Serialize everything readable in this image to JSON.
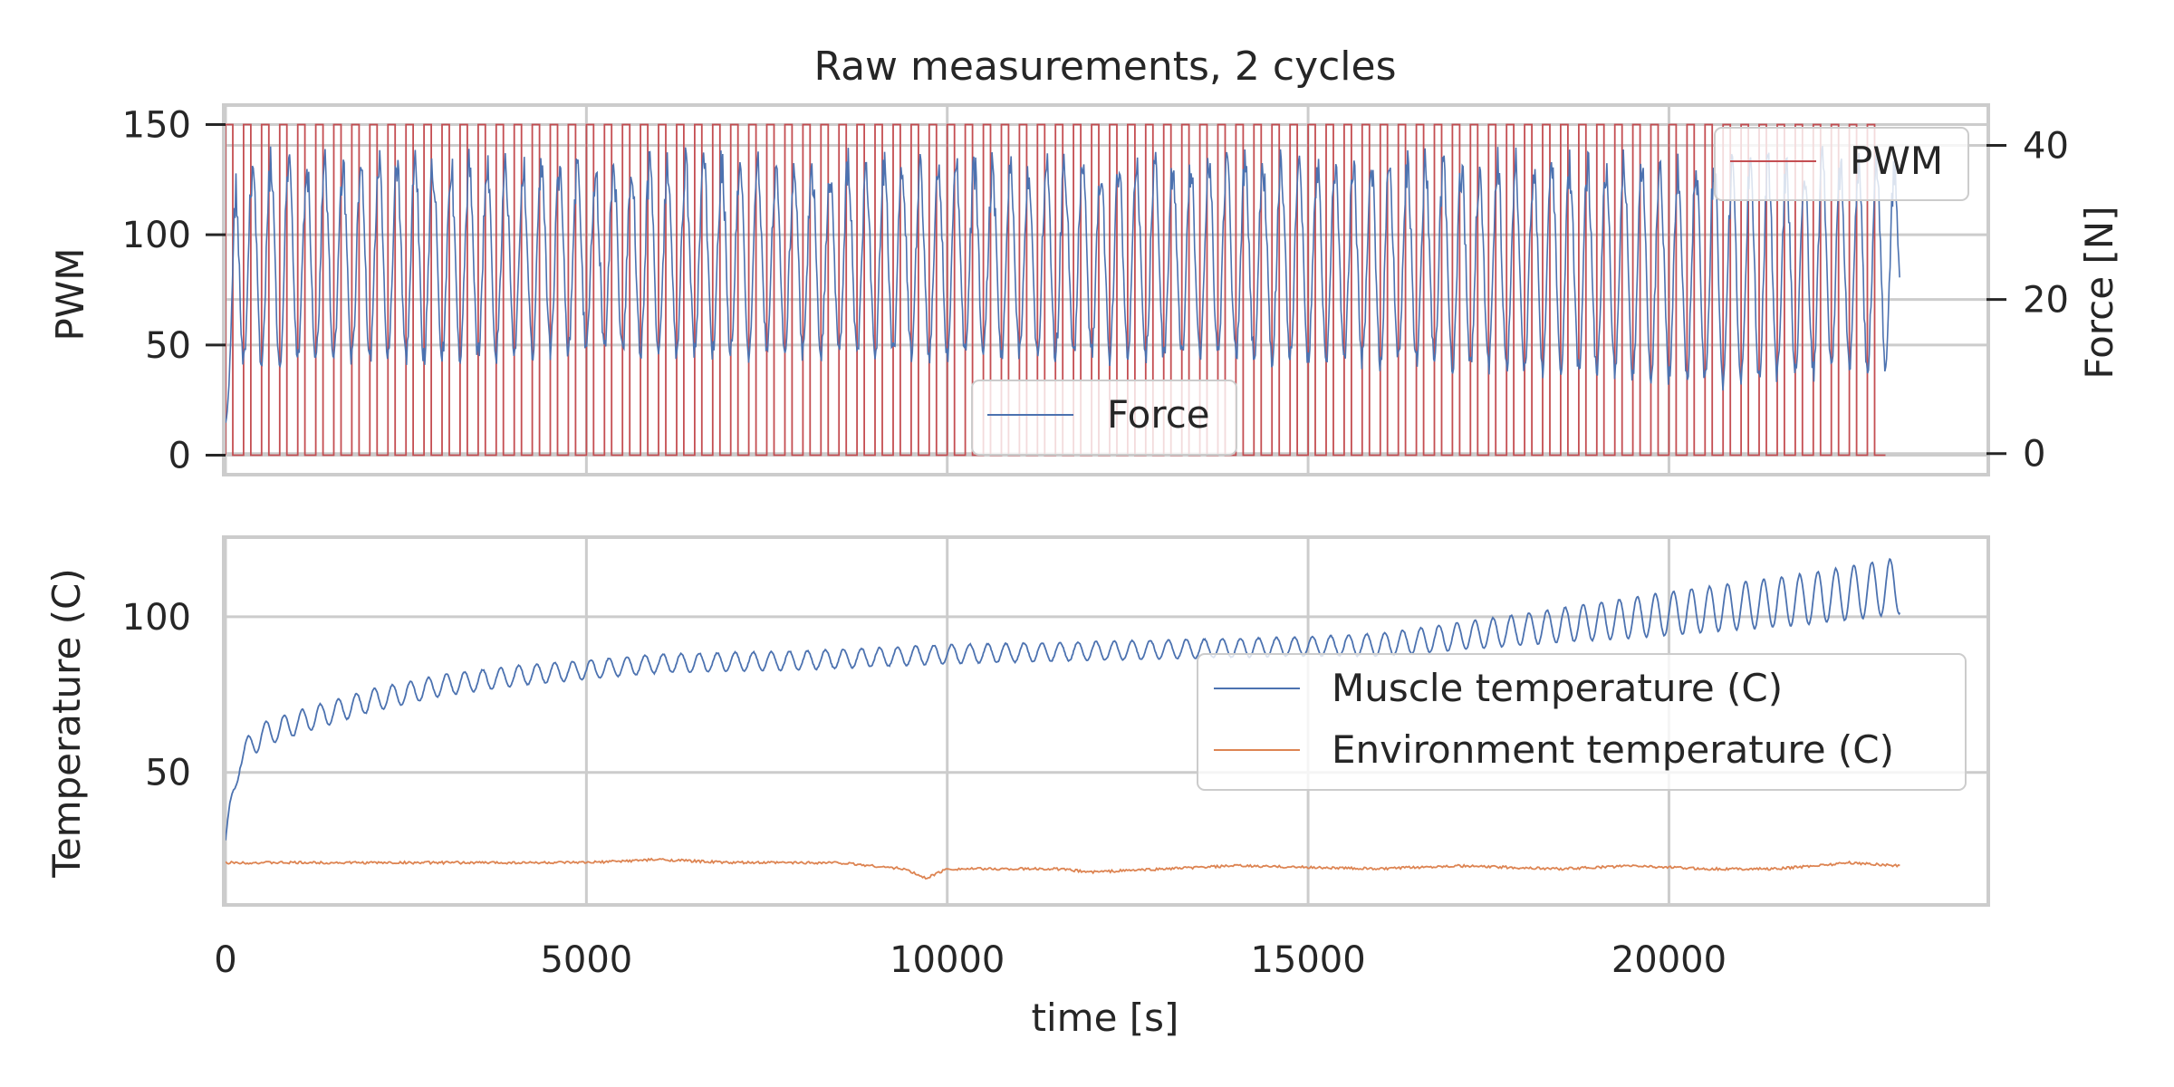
{
  "chart_data": [
    {
      "type": "line",
      "title": "Raw measurements, 2 cycles",
      "xlabel": "",
      "ylabel": "PWM",
      "y2label": "Force [N]",
      "xlim": [
        0,
        24400
      ],
      "ylim": [
        -8,
        158
      ],
      "y2lim": [
        -2.5,
        45
      ],
      "xticks": [
        0,
        5000,
        10000,
        15000,
        20000
      ],
      "yticks": [
        0,
        50,
        100,
        150
      ],
      "y2ticks": [
        0,
        20,
        40
      ],
      "grid": true,
      "series": [
        {
          "name": "PWM",
          "axis": "left",
          "color": "#c44e52",
          "kind": "square-wave",
          "values_range": [
            0,
            150
          ],
          "period": 250,
          "duty": 0.4,
          "x_range": [
            0,
            23000
          ]
        },
        {
          "name": "Force",
          "axis": "right",
          "color": "#4c72b0",
          "kind": "oscillation",
          "peaks": [
            {
              "x": 0,
              "y": 40
            },
            {
              "x": 23000,
              "y": 40
            }
          ],
          "troughs": [
            {
              "x": 0,
              "y": 10
            },
            {
              "x": 5000,
              "y": 12
            },
            {
              "x": 15000,
              "y": 11
            },
            {
              "x": 21000,
              "y": 8
            },
            {
              "x": 23000,
              "y": 10
            }
          ],
          "start_value": 4,
          "x_range": [
            0,
            23200
          ]
        }
      ],
      "legends": [
        {
          "labels": [
            "PWM"
          ],
          "placement": "upper right"
        },
        {
          "labels": [
            "Force"
          ],
          "placement": "lower center"
        }
      ]
    },
    {
      "type": "line",
      "xlabel": "time [s]",
      "ylabel": "Temperature (C)",
      "xlim": [
        0,
        24400
      ],
      "ylim": [
        8,
        125
      ],
      "xticks": [
        0,
        5000,
        10000,
        15000,
        20000
      ],
      "yticks": [
        50,
        100
      ],
      "grid": true,
      "series": [
        {
          "name": "Muscle temperature (C)",
          "color": "#4c72b0",
          "kind": "oscillating-trend",
          "trend": [
            {
              "x": 0,
              "y": 28
            },
            {
              "x": 200,
              "y": 55
            },
            {
              "x": 500,
              "y": 62
            },
            {
              "x": 1000,
              "y": 66
            },
            {
              "x": 2000,
              "y": 73
            },
            {
              "x": 3000,
              "y": 78
            },
            {
              "x": 4000,
              "y": 81
            },
            {
              "x": 5000,
              "y": 83
            },
            {
              "x": 6000,
              "y": 85
            },
            {
              "x": 8000,
              "y": 86
            },
            {
              "x": 10000,
              "y": 88
            },
            {
              "x": 12000,
              "y": 89
            },
            {
              "x": 14000,
              "y": 90
            },
            {
              "x": 16000,
              "y": 91
            },
            {
              "x": 18000,
              "y": 96
            },
            {
              "x": 20000,
              "y": 101
            },
            {
              "x": 22000,
              "y": 106
            },
            {
              "x": 23200,
              "y": 110
            }
          ],
          "amplitude": [
            {
              "x": 0,
              "y": 4
            },
            {
              "x": 5000,
              "y": 3
            },
            {
              "x": 15000,
              "y": 3
            },
            {
              "x": 18000,
              "y": 5
            },
            {
              "x": 20000,
              "y": 7
            },
            {
              "x": 23200,
              "y": 9
            }
          ]
        },
        {
          "name": "Environment temperature (C)",
          "color": "#dd8452",
          "kind": "noisy-baseline",
          "points": [
            {
              "x": 0,
              "y": 21
            },
            {
              "x": 1000,
              "y": 21
            },
            {
              "x": 3000,
              "y": 21
            },
            {
              "x": 5000,
              "y": 21
            },
            {
              "x": 6000,
              "y": 22
            },
            {
              "x": 7000,
              "y": 21
            },
            {
              "x": 8500,
              "y": 21
            },
            {
              "x": 9400,
              "y": 19
            },
            {
              "x": 9700,
              "y": 16
            },
            {
              "x": 10000,
              "y": 19
            },
            {
              "x": 11500,
              "y": 19
            },
            {
              "x": 12000,
              "y": 18
            },
            {
              "x": 14000,
              "y": 20
            },
            {
              "x": 16000,
              "y": 19
            },
            {
              "x": 17000,
              "y": 20
            },
            {
              "x": 18500,
              "y": 19
            },
            {
              "x": 19500,
              "y": 20
            },
            {
              "x": 20500,
              "y": 19
            },
            {
              "x": 21500,
              "y": 19
            },
            {
              "x": 22500,
              "y": 21
            },
            {
              "x": 23200,
              "y": 20
            }
          ]
        }
      ],
      "legends": [
        {
          "labels": [
            "Muscle temperature (C)",
            "Environment temperature (C)"
          ],
          "placement": "center right"
        }
      ]
    }
  ]
}
